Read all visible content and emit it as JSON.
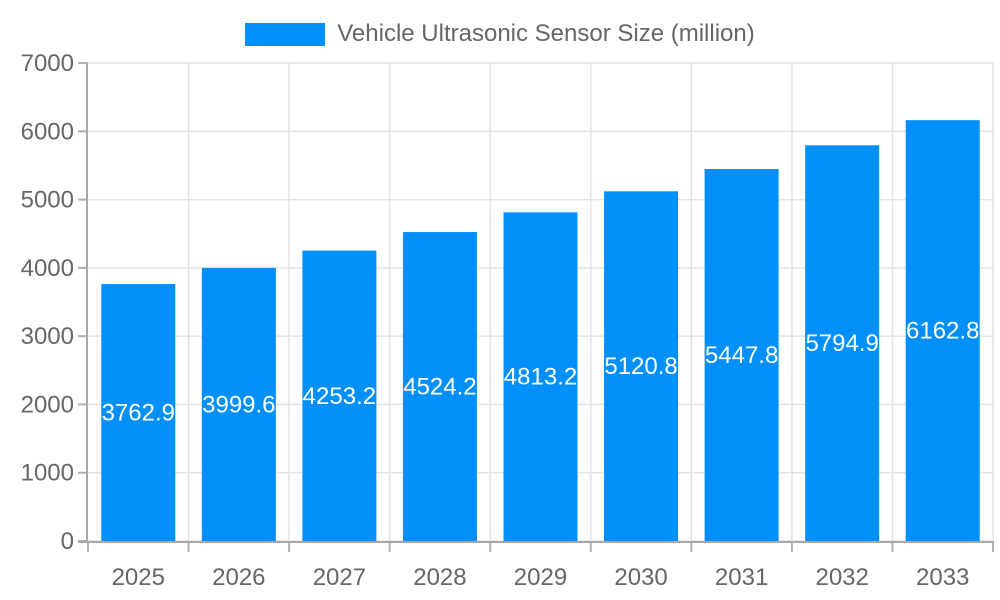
{
  "chart_data": {
    "type": "bar",
    "title": "Vehicle Ultrasonic Sensor Size (million)",
    "categories": [
      "2025",
      "2026",
      "2027",
      "2028",
      "2029",
      "2030",
      "2031",
      "2032",
      "2033"
    ],
    "values": [
      3762.9,
      3999.6,
      4253.2,
      4524.2,
      4813.2,
      5120.8,
      5447.8,
      5794.9,
      6162.8
    ],
    "value_label_decimals": 1,
    "xlabel": "",
    "ylabel": "",
    "ylim": [
      0,
      7000
    ],
    "ytick_step": 1000,
    "grid": true,
    "legend_position": "top",
    "colors": {
      "bar": "#0190fa",
      "value_label": "#ffffff",
      "axis_text": "#666666",
      "grid_line": "#e3e3e3",
      "axis_line": "#a8a8a8",
      "tick_mark": "#b0b0b0"
    }
  }
}
